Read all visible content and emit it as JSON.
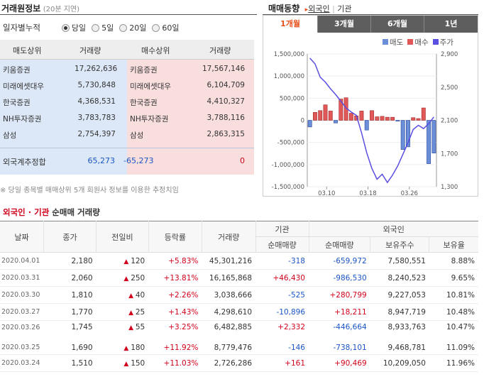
{
  "header": {
    "title": "거래원정보",
    "subtitle": "(20분 지연)",
    "trend_title": "매매동향",
    "links": [
      "외국인",
      "기관"
    ]
  },
  "filter": {
    "label": "일자별누적",
    "options": [
      "당일",
      "5일",
      "20일",
      "60일"
    ],
    "selected": "당일"
  },
  "rank_table": {
    "headers": [
      "매도상위",
      "거래량",
      "매수상위",
      "거래량"
    ],
    "rows": [
      [
        "키움증권",
        "17,262,636",
        "키움증권",
        "17,567,146"
      ],
      [
        "미래에셋대우",
        "5,730,848",
        "미래에셋대우",
        "6,104,709"
      ],
      [
        "한국증권",
        "4,368,531",
        "한국증권",
        "4,410,327"
      ],
      [
        "NH투자증권",
        "3,783,783",
        "NH투자증권",
        "3,788,116"
      ],
      [
        "삼성",
        "2,754,397",
        "삼성",
        "2,863,315"
      ]
    ],
    "foreign": {
      "label": "외국계추정합",
      "sell": "65,273",
      "buy_label": "-65,273",
      "buy": "0"
    }
  },
  "footnote": "※ 당일 종목별 매매상위 5개 회원사 정보를 이용한 추정치임",
  "trend_tabs": [
    "1개월",
    "3개월",
    "6개월",
    "1년"
  ],
  "active_tab": "1개월",
  "colors": {
    "sell": "#6b8ed8",
    "buy": "#e05858",
    "price": "#5a4fe0",
    "tab_active": "#e8501a"
  },
  "chart_data": {
    "type": "bar",
    "legend": [
      "매도",
      "매수",
      "주가"
    ],
    "legend_position": "top-right",
    "x_ticks": [
      "03.10",
      "03.18",
      "03.26"
    ],
    "y_left_ticks": [
      "1,500,000",
      "1,000,000",
      "500,000",
      "0",
      "-500,000",
      "-1,000,000",
      "-1,500,000"
    ],
    "y_left_range": [
      -1500000,
      1500000
    ],
    "y_right_ticks": [
      "2,900",
      "2,500",
      "2,100",
      "1,700",
      "1,300"
    ],
    "y_right_range": [
      1300,
      2900
    ],
    "bars": [
      -150000,
      180000,
      220000,
      350000,
      210000,
      -60000,
      480000,
      510000,
      160000,
      100000,
      210000,
      -220000,
      220000,
      80000,
      90000,
      70000,
      70000,
      -20000,
      -660000,
      -600000,
      60000,
      40000,
      280000,
      -980000,
      -740000
    ],
    "price": [
      2850,
      2780,
      2620,
      2560,
      2480,
      2410,
      2330,
      2250,
      2200,
      2160,
      1950,
      1710,
      1520,
      1390,
      1450,
      1350,
      1440,
      1550,
      1690,
      1830,
      1990,
      2040,
      2000,
      2060,
      2140
    ]
  },
  "bottom": {
    "title_part1": "외국인 · 기관",
    "title_part2": "순매매 거래량",
    "headers": [
      "날짜",
      "종가",
      "전일비",
      "등락률",
      "거래량",
      "기관",
      "외국인"
    ],
    "subheaders": [
      "순매매량",
      "순매매량",
      "보유주수",
      "보유율"
    ],
    "rows": [
      [
        "2020.04.01",
        "2,180",
        "120",
        "+5.83%",
        "45,301,216",
        "-318",
        "-659,972",
        "7,580,551",
        "8.88%"
      ],
      [
        "2020.03.31",
        "2,060",
        "250",
        "+13.81%",
        "16,165,868",
        "+46,430",
        "-986,530",
        "8,240,523",
        "9.65%"
      ],
      [
        "2020.03.30",
        "1,810",
        "40",
        "+2.26%",
        "3,038,666",
        "-525",
        "+280,799",
        "9,227,053",
        "10.81%"
      ],
      [
        "2020.03.27",
        "1,770",
        "25",
        "+1.43%",
        "4,298,610",
        "-10,896",
        "+18,211",
        "8,947,719",
        "10.48%"
      ],
      [
        "2020.03.26",
        "1,745",
        "55",
        "+3.25%",
        "6,482,885",
        "+2,332",
        "-446,664",
        "8,933,763",
        "10.47%"
      ],
      [
        "2020.03.25",
        "1,690",
        "180",
        "+11.92%",
        "8,779,476",
        "-146",
        "-738,101",
        "9,468,781",
        "11.09%"
      ],
      [
        "2020.03.24",
        "1,510",
        "150",
        "+11.03%",
        "2,726,286",
        "+161",
        "+90,469",
        "10,209,050",
        "11.96%"
      ]
    ]
  }
}
